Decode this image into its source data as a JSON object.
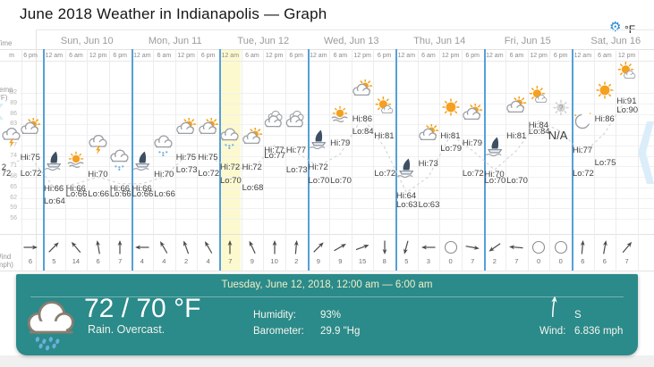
{
  "window_title": "June 2018 Weather in Indianapolis — Graph",
  "controls": {
    "settings_icon": "gear-icon",
    "unit_label": "°F"
  },
  "axis": {
    "time_label": "Time",
    "temp_label": "Temp (°F)",
    "wind_label": "Wind (mph)",
    "temp_ticks": [
      92,
      89,
      86,
      83,
      80,
      77,
      74,
      71,
      68,
      65,
      62,
      59,
      56
    ]
  },
  "graph": {
    "leading_day": {
      "slots": [
        {
          "time": "m",
          "icon": "thunderstorm",
          "hi": "2",
          "lo": "72",
          "trend_value": 72
        },
        {
          "time": "6 pm",
          "icon": "partly-cloudy",
          "hi": "Hi:75",
          "lo": "Lo:72",
          "wind": {
            "speed": 6,
            "dir_deg": 0
          }
        }
      ]
    },
    "days": [
      {
        "label": "Sun, Jun 10",
        "slots": [
          {
            "time": "12 am",
            "icon": "sailboat",
            "hi": "Hi:66",
            "lo": "Lo:64",
            "wind": {
              "speed": 5,
              "dir_deg": -45
            }
          },
          {
            "time": "6 am",
            "icon": "haze",
            "hi": "Hi:66",
            "lo": "Lo:66",
            "wind": {
              "speed": 14,
              "dir_deg": -130
            }
          },
          {
            "time": "12 pm",
            "icon": "thunderstorm",
            "hi": "Hi:70",
            "lo": "Lo:66",
            "wind": {
              "speed": 6,
              "dir_deg": -100
            }
          },
          {
            "time": "6 pm",
            "icon": "rain",
            "hi": "Hi:66",
            "lo": "Lo:66",
            "wind": {
              "speed": 7,
              "dir_deg": -90
            }
          }
        ]
      },
      {
        "label": "Mon, Jun 11",
        "slots": [
          {
            "time": "12 am",
            "icon": "sailboat",
            "hi": "Hi:66",
            "lo": "Lo:66",
            "wind": {
              "speed": 4,
              "dir_deg": 180
            }
          },
          {
            "time": "6 am",
            "icon": "rain",
            "hi": "Hi:70",
            "lo": "Lo:66",
            "wind": {
              "speed": 4,
              "dir_deg": -120
            }
          },
          {
            "time": "12 pm",
            "icon": "partly-cloudy",
            "hi": "Hi:75",
            "lo": "Lo:73",
            "wind": {
              "speed": 2,
              "dir_deg": -110
            }
          },
          {
            "time": "6 pm",
            "icon": "partly-cloudy",
            "hi": "Hi:75",
            "lo": "Lo:72",
            "wind": {
              "speed": 4,
              "dir_deg": -120
            }
          }
        ]
      },
      {
        "label": "Tue, Jun 12",
        "slots": [
          {
            "time": "12 am",
            "icon": "rain",
            "hi": "Hi:72",
            "lo": "Lo:70",
            "selected": true,
            "wind": {
              "speed": 7,
              "dir_deg": -90
            }
          },
          {
            "time": "6 am",
            "icon": "partly-cloudy",
            "hi": "Hi:72",
            "lo": "Lo:68",
            "wind": {
              "speed": 9,
              "dir_deg": -115
            }
          },
          {
            "time": "12 pm",
            "icon": "cloudy",
            "hi": "Hi:77",
            "lo": "Lo:77",
            "wind": {
              "speed": 10,
              "dir_deg": -90
            }
          },
          {
            "time": "6 pm",
            "icon": "cloudy",
            "hi": "Hi:77",
            "lo": "Lo:73",
            "wind": {
              "speed": 2,
              "dir_deg": -85
            }
          }
        ]
      },
      {
        "label": "Wed, Jun 13",
        "slots": [
          {
            "time": "12 am",
            "icon": "sailboat",
            "hi": "Hi:72",
            "lo": "Lo:70",
            "wind": {
              "speed": 9,
              "dir_deg": -45
            }
          },
          {
            "time": "6 am",
            "icon": "haze",
            "hi": "Hi:79",
            "lo": "Lo:70",
            "wind": {
              "speed": 9,
              "dir_deg": -30
            }
          },
          {
            "time": "12 pm",
            "icon": "partly-cloudy",
            "hi": "Hi:86",
            "lo": "Lo:84",
            "wind": {
              "speed": 15,
              "dir_deg": -20
            }
          },
          {
            "time": "6 pm",
            "icon": "mostly-sunny",
            "hi": "Hi:81",
            "lo": "Lo:72",
            "wind": {
              "speed": 8,
              "dir_deg": 90
            }
          }
        ]
      },
      {
        "label": "Thu, Jun 14",
        "slots": [
          {
            "time": "12 am",
            "icon": "sailboat",
            "hi": "Hi:64",
            "lo": "Lo:63",
            "wind": {
              "speed": 5,
              "dir_deg": 105
            }
          },
          {
            "time": "6 am",
            "icon": "partly-cloudy",
            "hi": "Hi:73",
            "lo": "Lo:63",
            "wind": {
              "speed": 3,
              "dir_deg": 180
            }
          },
          {
            "time": "12 pm",
            "icon": "sun",
            "hi": "Hi:81",
            "lo": "Lo:79",
            "wind": {
              "speed": 0,
              "calm": true
            }
          },
          {
            "time": "6 pm",
            "icon": "partly-cloudy",
            "hi": "Hi:79",
            "lo": "Lo:72",
            "wind": {
              "speed": 7,
              "dir_deg": 10
            }
          }
        ]
      },
      {
        "label": "Fri, Jun 15",
        "slots": [
          {
            "time": "12 am",
            "icon": "sailboat",
            "hi": "Hi:70",
            "lo": "Lo:70",
            "wind": {
              "speed": 2,
              "dir_deg": 145
            }
          },
          {
            "time": "6 am",
            "icon": "partly-cloudy",
            "hi": "Hi:81",
            "lo": "Lo:70",
            "wind": {
              "speed": 7,
              "dir_deg": 185
            }
          },
          {
            "time": "12 pm",
            "icon": "mostly-sunny",
            "hi": "Hi:84",
            "lo": "Lo:84",
            "wind": {
              "speed": 0,
              "calm": true
            }
          },
          {
            "time": "6 pm",
            "icon": "unknown",
            "na": "N/A",
            "trend_value": 81,
            "wind": {
              "speed": 0,
              "calm": true
            }
          }
        ]
      },
      {
        "label": "Sat, Jun 16",
        "slots": [
          {
            "time": "12 am",
            "icon": "moon",
            "hi": "Hi:77",
            "lo": "Lo:72",
            "wind": {
              "speed": 6,
              "dir_deg": -85
            }
          },
          {
            "time": "6 am",
            "icon": "sun",
            "hi": "Hi:86",
            "lo": "Lo:75",
            "wind": {
              "speed": 6,
              "dir_deg": -80
            }
          },
          {
            "time": "12 pm",
            "icon": "mostly-sunny",
            "hi": "Hi:91",
            "lo": "Lo:90",
            "wind": {
              "speed": 7,
              "dir_deg": -50
            }
          }
        ]
      }
    ]
  },
  "panel": {
    "title": "Tuesday, June 12, 2018, 12:00 am — 6:00 am",
    "temperature": "72 / 70 °F",
    "condition": "Rain. Overcast.",
    "humidity_label": "Humidity:",
    "humidity_value": "93%",
    "barometer_label": "Barometer:",
    "barometer_value": "29.9 \"Hg",
    "wind_label": "Wind:",
    "wind_value": "6.836 mph",
    "wind_direction": "S",
    "panel_icon": "rain-cloud-icon"
  },
  "chart_data": {
    "type": "line",
    "title": "June 2018 Weather in Indianapolis — Graph",
    "xlabel": "Time",
    "ylabel": "Temp (°F)",
    "ylim": [
      56,
      92
    ],
    "grid": true,
    "x_categories": [
      "Jun 9 12 pm",
      "Jun 9 6 pm",
      "Jun 10 12 am",
      "Jun 10 6 am",
      "Jun 10 12 pm",
      "Jun 10 6 pm",
      "Jun 11 12 am",
      "Jun 11 6 am",
      "Jun 11 12 pm",
      "Jun 11 6 pm",
      "Jun 12 12 am",
      "Jun 12 6 am",
      "Jun 12 12 pm",
      "Jun 12 6 pm",
      "Jun 13 12 am",
      "Jun 13 6 am",
      "Jun 13 12 pm",
      "Jun 13 6 pm",
      "Jun 14 12 am",
      "Jun 14 6 am",
      "Jun 14 12 pm",
      "Jun 14 6 pm",
      "Jun 15 12 am",
      "Jun 15 6 am",
      "Jun 15 12 pm",
      "Jun 15 6 pm",
      "Jun 16 12 am",
      "Jun 16 6 am",
      "Jun 16 12 pm"
    ],
    "series": [
      {
        "name": "High (°F)",
        "values": [
          72,
          75,
          66,
          66,
          70,
          66,
          66,
          70,
          75,
          75,
          72,
          72,
          77,
          77,
          72,
          79,
          86,
          81,
          64,
          73,
          81,
          79,
          70,
          81,
          84,
          null,
          77,
          86,
          91
        ]
      },
      {
        "name": "Low (°F)",
        "values": [
          72,
          72,
          64,
          66,
          66,
          66,
          66,
          66,
          73,
          72,
          70,
          68,
          77,
          73,
          70,
          70,
          84,
          72,
          63,
          63,
          79,
          72,
          70,
          70,
          84,
          null,
          72,
          75,
          90
        ]
      },
      {
        "name": "Wind (mph)",
        "values": [
          null,
          6,
          5,
          14,
          6,
          7,
          4,
          4,
          2,
          4,
          7,
          9,
          10,
          2,
          9,
          9,
          15,
          8,
          5,
          3,
          0,
          7,
          2,
          7,
          0,
          0,
          6,
          6,
          7
        ]
      }
    ]
  },
  "colors": {
    "day_divider_blue": "#55a0d8",
    "highlight_yellow": "#fdf9cf",
    "panel_teal": "#2b8a8a",
    "gear_blue": "#1f87d6",
    "watermark_blue": "#dcedfa",
    "sun_orange": "#f5a01e",
    "rain_drop_blue": "#74b1da"
  }
}
